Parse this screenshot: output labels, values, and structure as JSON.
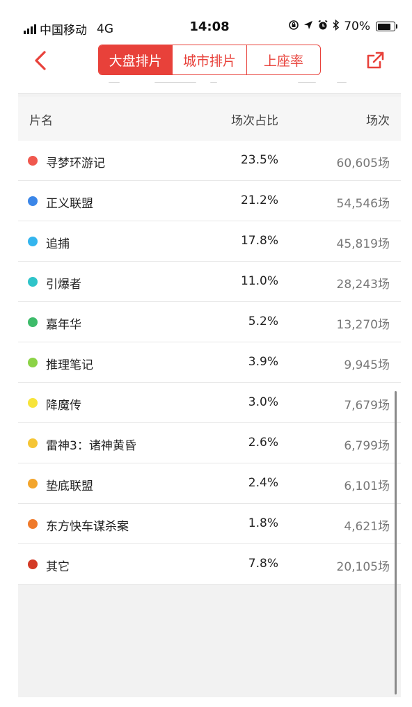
{
  "status_bar": {
    "carrier": "中国移动",
    "network": "4G",
    "time": "14:08",
    "battery": "70%",
    "icons": [
      "signal-icon",
      "lock-rotation-icon",
      "location-arrow-icon",
      "alarm-icon",
      "bluetooth-icon",
      "battery-icon"
    ]
  },
  "nav": {
    "back_icon": "chevron-left-icon",
    "share_icon": "share-external-icon",
    "accent_color": "#e8413a",
    "tabs": [
      {
        "label": "大盘排片",
        "active": true
      },
      {
        "label": "城市排片",
        "active": false
      },
      {
        "label": "上座率",
        "active": false
      }
    ]
  },
  "table": {
    "headers": {
      "name": "片名",
      "ratio": "场次占比",
      "count": "场次"
    },
    "rows": [
      {
        "name": "寻梦环游记",
        "ratio": "23.5%",
        "count": "60,605场",
        "color": "#f0584e"
      },
      {
        "name": "正义联盟",
        "ratio": "21.2%",
        "count": "54,546场",
        "color": "#3b86e8"
      },
      {
        "name": "追捕",
        "ratio": "17.8%",
        "count": "45,819场",
        "color": "#34b5ee"
      },
      {
        "name": "引爆者",
        "ratio": "11.0%",
        "count": "28,243场",
        "color": "#2fc4c9"
      },
      {
        "name": "嘉年华",
        "ratio": "5.2%",
        "count": "13,270场",
        "color": "#3dbb6a"
      },
      {
        "name": "推理笔记",
        "ratio": "3.9%",
        "count": "9,945场",
        "color": "#8cd347"
      },
      {
        "name": "降魔传",
        "ratio": "3.0%",
        "count": "7,679场",
        "color": "#f7e43a"
      },
      {
        "name": "雷神3：诸神黄昏",
        "ratio": "2.6%",
        "count": "6,799场",
        "color": "#f5c535"
      },
      {
        "name": "垫底联盟",
        "ratio": "2.4%",
        "count": "6,101场",
        "color": "#f3a52c"
      },
      {
        "name": "东方快车谋杀案",
        "ratio": "1.8%",
        "count": "4,621场",
        "color": "#ef7a2b"
      },
      {
        "name": "其它",
        "ratio": "7.8%",
        "count": "20,105场",
        "color": "#d33a26"
      }
    ]
  }
}
